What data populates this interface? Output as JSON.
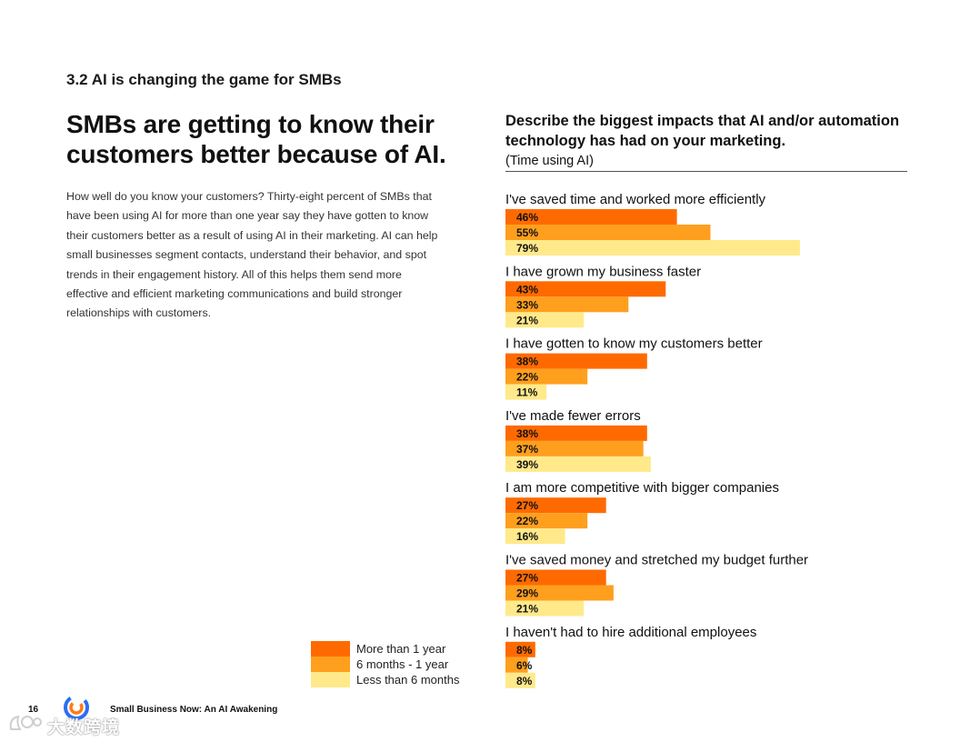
{
  "section_label": "3.2 AI is changing the game for SMBs",
  "headline": "SMBs are getting to know their customers better because of AI.",
  "body_text": "How well do you know your customers? Thirty-eight percent of SMBs that have been using AI for more than one year say they have gotten to know their customers better as a result of using AI in their marketing. AI can help small businesses segment contacts, understand their behavior, and spot trends in their engagement history. All of this helps them send more effective and efficient marketing communications and build stronger relationships with customers.",
  "footer": {
    "page_number": "16",
    "report_title": "Small Business Now: An AI Awakening"
  },
  "watermark_text": "大数跨境",
  "colors": {
    "more_than_1_year": "#ff6a00",
    "six_months_1_year": "#ff9f1e",
    "less_than_6_months": "#ffe98a"
  },
  "chart_data": {
    "type": "bar",
    "orientation": "horizontal",
    "title": "Describe the biggest impacts that AI and/or automation technology has had on your marketing.",
    "subtitle": "(Time using AI)",
    "unit": "%",
    "xlim": [
      0,
      100
    ],
    "categories": [
      "I've saved time and worked more efficiently",
      "I have grown my business faster",
      "I have gotten to know my customers better",
      "I've made fewer errors",
      "I am more competitive with bigger companies",
      "I've saved money and stretched my budget further",
      "I haven't had to hire additional employees"
    ],
    "series": [
      {
        "name": "More than 1 year",
        "color": "#ff6a00",
        "values": [
          46,
          43,
          38,
          38,
          27,
          27,
          8
        ]
      },
      {
        "name": "6 months - 1 year",
        "color": "#ff9f1e",
        "values": [
          55,
          33,
          22,
          37,
          22,
          29,
          6
        ]
      },
      {
        "name": "Less than 6 months",
        "color": "#ffe98a",
        "values": [
          79,
          21,
          11,
          39,
          16,
          21,
          8
        ]
      }
    ],
    "legend": [
      {
        "label": "More than 1 year",
        "color": "#ff6a00"
      },
      {
        "label": "6 months - 1 year",
        "color": "#ff9f1e"
      },
      {
        "label": "Less than 6 months",
        "color": "#ffe98a"
      }
    ],
    "legend_position": "bottom-left"
  }
}
